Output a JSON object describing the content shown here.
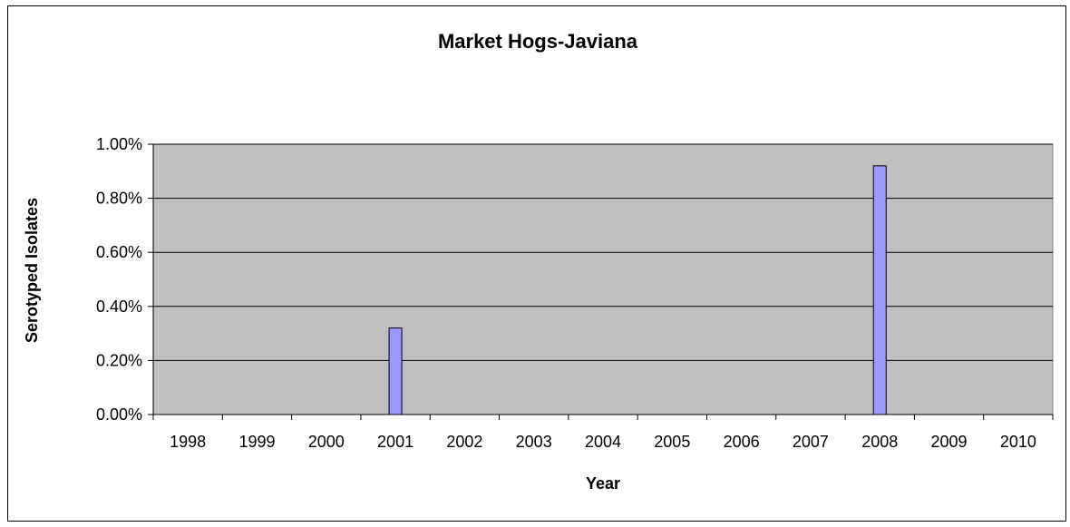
{
  "chart_data": {
    "type": "bar",
    "title": "Market Hogs-Javiana",
    "xlabel": "Year",
    "ylabel": "Serotyped Isolates",
    "categories": [
      "1998",
      "1999",
      "2000",
      "2001",
      "2002",
      "2003",
      "2004",
      "2005",
      "2006",
      "2007",
      "2008",
      "2009",
      "2010"
    ],
    "values": [
      0,
      0,
      0,
      0.0032,
      0,
      0,
      0,
      0,
      0,
      0,
      0.0092,
      0,
      0
    ],
    "ylim": [
      0,
      0.01
    ],
    "yticks": [
      0,
      0.002,
      0.004,
      0.006,
      0.008,
      0.01
    ],
    "ytick_labels": [
      "0.00%",
      "0.20%",
      "0.40%",
      "0.60%",
      "0.80%",
      "1.00%"
    ],
    "grid": true,
    "legend": "none",
    "colors": {
      "plot_background": "#c0c0c0",
      "bar_fill": "#9999ff",
      "bar_stroke": "#000000",
      "gridline": "#000000"
    }
  }
}
